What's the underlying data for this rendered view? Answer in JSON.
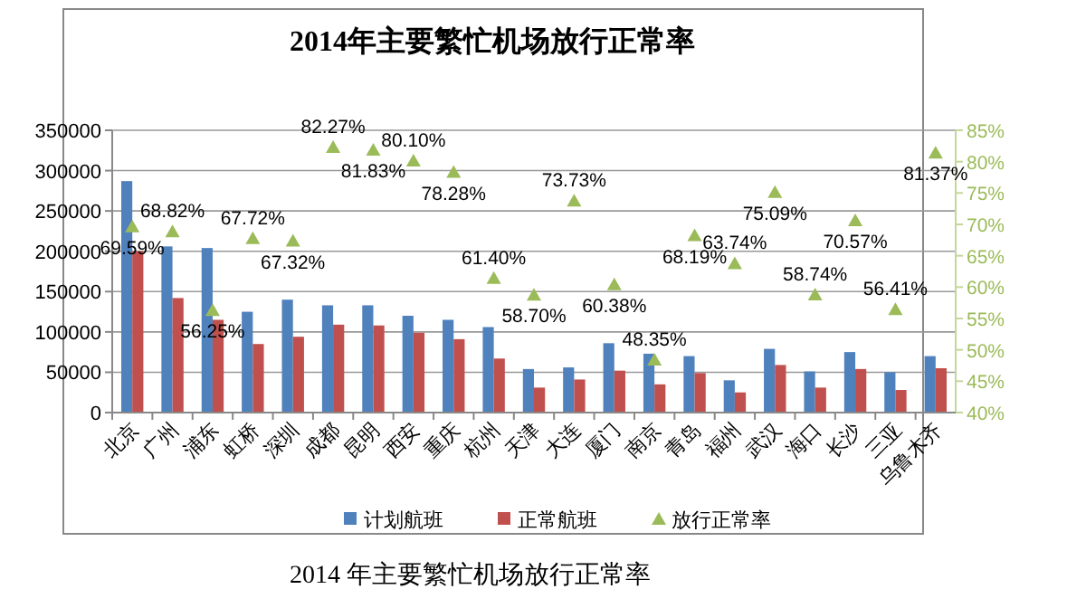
{
  "chart_data": {
    "type": "bar",
    "title": "2014年主要繁忙机场放行正常率",
    "categories": [
      "北京",
      "广州",
      "浦东",
      "虹桥",
      "深圳",
      "成都",
      "昆明",
      "西安",
      "重庆",
      "杭州",
      "天津",
      "大连",
      "厦门",
      "南京",
      "青岛",
      "福州",
      "武汉",
      "海口",
      "长沙",
      "三亚",
      "乌鲁木齐"
    ],
    "series": [
      {
        "name": "计划航班",
        "color": "#4f81bd",
        "values": [
          287000,
          206000,
          204000,
          125000,
          140000,
          133000,
          133000,
          120000,
          115000,
          106000,
          54000,
          56000,
          86000,
          73000,
          70000,
          40000,
          79000,
          51000,
          75000,
          50000,
          70000
        ]
      },
      {
        "name": "正常航班",
        "color": "#c0504d",
        "values": [
          200000,
          142000,
          115000,
          85000,
          94000,
          109000,
          108000,
          99000,
          91000,
          67000,
          31000,
          41000,
          52000,
          35000,
          49000,
          25000,
          59000,
          31000,
          54000,
          28000,
          55000
        ]
      },
      {
        "name": "放行正常率",
        "type": "scatter",
        "axis": "y2",
        "marker": "triangle",
        "color": "#9bbb59",
        "values": [
          69.59,
          68.82,
          56.25,
          67.72,
          67.32,
          82.27,
          81.83,
          80.1,
          78.28,
          61.4,
          58.7,
          73.73,
          60.38,
          48.35,
          68.19,
          63.74,
          75.09,
          58.74,
          70.57,
          56.41,
          81.37
        ],
        "value_labels": [
          "69.59%",
          "68.82%",
          "56.25%",
          "67.72%",
          "67.32%",
          "82.27%",
          "81.83%",
          "80.10%",
          "78.28%",
          "61.40%",
          "58.70%",
          "73.73%",
          "60.38%",
          "48.35%",
          "68.19%",
          "63.74%",
          "75.09%",
          "58.74%",
          "70.57%",
          "56.41%",
          "81.37%"
        ]
      }
    ],
    "ylim": [
      0,
      350000
    ],
    "yticks": [
      0,
      50000,
      100000,
      150000,
      200000,
      250000,
      300000,
      350000
    ],
    "y2lim": [
      40,
      85
    ],
    "y2ticks": [
      {
        "value": 40,
        "label": "40%"
      },
      {
        "value": 45,
        "label": "45%"
      },
      {
        "value": 50,
        "label": "50%"
      },
      {
        "value": 55,
        "label": "55%"
      },
      {
        "value": 60,
        "label": "60%"
      },
      {
        "value": 65,
        "label": "65%"
      },
      {
        "value": 70,
        "label": "70%"
      },
      {
        "value": 75,
        "label": "75%"
      },
      {
        "value": 80,
        "label": "80%"
      },
      {
        "value": 85,
        "label": "85%"
      }
    ],
    "grid": "y",
    "legend": "bottom",
    "annotations": [
      "2014 年主要繁忙机场放行正常率"
    ]
  }
}
